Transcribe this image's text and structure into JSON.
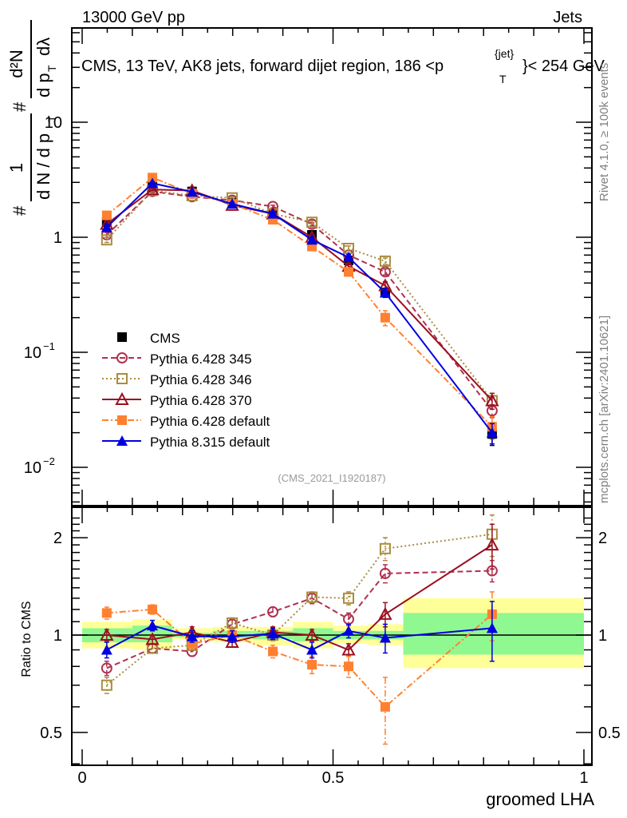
{
  "header": {
    "left": "13000 GeV pp",
    "right": "Jets"
  },
  "side_labels": {
    "rivet": "Rivet 4.1.0, ≥ 100k events",
    "mcplots": "mcplots.cern.ch [arXiv:2401.10621]"
  },
  "chart_data": [
    {
      "type": "line",
      "panel": "main",
      "title": "CMS, 13 TeV, AK8 jets, forward dijet region, 186 <p_T^{jet}< 254 GeV",
      "title_parts": {
        "main": "CMS, 13 TeV, AK8 jets, forward dijet region, 186 <p",
        "sup": "{jet}",
        "sub": "T",
        "tail": "}< 254 GeV"
      },
      "ylabel": "1/dN/dp_T  d²N/dp_T dλ",
      "ylabel_parts": {
        "frac1_num": "1",
        "frac1_den": "d N / d p",
        "frac2_num": "d²N",
        "frac2_den": "d p",
        "frac2_den_tail": "dλ",
        "hash": "#"
      },
      "xlabel": "groomed LHA",
      "yscale": "log",
      "ylim": [
        0.0045,
        45
      ],
      "xlim": [
        -0.02,
        1.015
      ],
      "yticks": [
        {
          "v": 0.01,
          "label": "10",
          "exp": "−2"
        },
        {
          "v": 0.1,
          "label": "10",
          "exp": "−1"
        },
        {
          "v": 1,
          "label": "1",
          "exp": ""
        },
        {
          "v": 10,
          "label": "10",
          "exp": ""
        }
      ],
      "watermark": "(CMS_2021_I1920187)",
      "legend_position": "center-left",
      "x": [
        0.049,
        0.14,
        0.219,
        0.299,
        0.38,
        0.458,
        0.531,
        0.604,
        0.817
      ],
      "series": [
        {
          "name": "CMS",
          "color": "#000000",
          "marker": "filled-square",
          "line": "none",
          "values": [
            1.35,
            2.75,
            2.5,
            2.0,
            1.6,
            1.05,
            0.63,
            0.33,
            0.0195
          ],
          "errors": [
            0.08,
            0.15,
            0.12,
            0.1,
            0.08,
            0.06,
            0.04,
            0.03,
            0.004
          ]
        },
        {
          "name": "Pythia 6.428 345",
          "color": "#b03050",
          "marker": "open-circle",
          "line": "dashed",
          "values": [
            1.05,
            2.5,
            2.25,
            2.1,
            1.85,
            1.3,
            0.7,
            0.5,
            0.031
          ],
          "errors": [
            0.05,
            0.06,
            0.06,
            0.05,
            0.05,
            0.04,
            0.03,
            0.03,
            0.004
          ]
        },
        {
          "name": "Pythia 6.428 346",
          "color": "#a98c3f",
          "marker": "open-square",
          "line": "dotted",
          "values": [
            0.95,
            2.55,
            2.3,
            2.2,
            1.6,
            1.35,
            0.8,
            0.62,
            0.038
          ],
          "errors": [
            0.05,
            0.06,
            0.06,
            0.05,
            0.05,
            0.04,
            0.04,
            0.04,
            0.006
          ]
        },
        {
          "name": "Pythia 6.428 370",
          "color": "#9b1020",
          "marker": "open-triangle",
          "line": "solid",
          "values": [
            1.3,
            2.6,
            2.55,
            1.9,
            1.6,
            1.0,
            0.56,
            0.38,
            0.038
          ],
          "errors": [
            0.05,
            0.06,
            0.07,
            0.05,
            0.05,
            0.04,
            0.03,
            0.03,
            0.006
          ]
        },
        {
          "name": "Pythia 6.428 default",
          "color": "#ff8030",
          "marker": "filled-square",
          "line": "dashdot",
          "values": [
            1.55,
            3.3,
            2.4,
            1.95,
            1.42,
            0.83,
            0.5,
            0.2,
            0.0225
          ],
          "errors": [
            0.06,
            0.08,
            0.06,
            0.05,
            0.05,
            0.04,
            0.04,
            0.03,
            0.005
          ]
        },
        {
          "name": "Pythia 8.315 default",
          "color": "#0000e0",
          "marker": "filled-triangle",
          "line": "solid",
          "values": [
            1.22,
            2.95,
            2.48,
            1.95,
            1.6,
            0.95,
            0.67,
            0.33,
            0.02
          ],
          "errors": [
            0.06,
            0.08,
            0.07,
            0.06,
            0.06,
            0.05,
            0.04,
            0.03,
            0.004
          ]
        }
      ]
    },
    {
      "type": "line",
      "panel": "ratio",
      "ylabel": "Ratio to CMS",
      "xlabel": "groomed LHA",
      "yscale": "log",
      "ylim": [
        0.42,
        2.4
      ],
      "xlim": [
        -0.02,
        1.015
      ],
      "yticks": [
        {
          "v": 0.5,
          "label": "0.5"
        },
        {
          "v": 1,
          "label": "1"
        },
        {
          "v": 2,
          "label": "2"
        }
      ],
      "xticks": [
        {
          "v": 0,
          "label": "0"
        },
        {
          "v": 0.5,
          "label": "0.5"
        },
        {
          "v": 1,
          "label": "1"
        }
      ],
      "bin_edges": [
        0.0,
        0.1,
        0.18,
        0.26,
        0.34,
        0.42,
        0.5,
        0.57,
        0.64,
        1.0
      ],
      "band_inner": [
        [
          0.95,
          1.05
        ],
        [
          0.95,
          1.07
        ],
        [
          0.985,
          1.015
        ],
        [
          0.98,
          1.03
        ],
        [
          0.97,
          1.03
        ],
        [
          0.955,
          1.05
        ],
        [
          0.97,
          1.03
        ],
        [
          0.97,
          1.03
        ],
        [
          0.87,
          1.17
        ]
      ],
      "band_outer": [
        [
          0.91,
          1.1
        ],
        [
          0.9,
          1.12
        ],
        [
          0.97,
          1.05
        ],
        [
          0.95,
          1.06
        ],
        [
          0.93,
          1.06
        ],
        [
          0.91,
          1.1
        ],
        [
          0.94,
          1.07
        ],
        [
          0.93,
          1.08
        ],
        [
          0.79,
          1.3
        ]
      ],
      "band_colors": {
        "inner": "#90f890",
        "outer": "#ffff99"
      },
      "x": [
        0.049,
        0.14,
        0.219,
        0.299,
        0.38,
        0.458,
        0.531,
        0.604,
        0.817
      ],
      "series": [
        {
          "name": "Pythia 6.428 345",
          "color": "#b03050",
          "marker": "open-circle",
          "line": "dashed",
          "values": [
            0.79,
            0.91,
            0.89,
            1.08,
            1.18,
            1.3,
            1.12,
            1.55,
            1.58
          ],
          "errors": [
            0.04,
            0.03,
            0.03,
            0.04,
            0.04,
            0.05,
            0.05,
            0.1,
            0.12
          ]
        },
        {
          "name": "Pythia 6.428 346",
          "color": "#a98c3f",
          "marker": "open-square",
          "line": "dotted",
          "values": [
            0.7,
            0.91,
            0.93,
            1.09,
            1.0,
            1.31,
            1.3,
            1.85,
            2.05
          ],
          "errors": [
            0.04,
            0.03,
            0.03,
            0.04,
            0.04,
            0.05,
            0.06,
            0.15,
            0.3
          ]
        },
        {
          "name": "Pythia 6.428 370",
          "color": "#9b1020",
          "marker": "open-triangle",
          "line": "solid",
          "values": [
            1.0,
            0.97,
            1.02,
            0.95,
            1.02,
            1.0,
            0.9,
            1.16,
            1.9
          ],
          "errors": [
            0.04,
            0.03,
            0.04,
            0.03,
            0.04,
            0.04,
            0.04,
            0.1,
            0.3
          ]
        },
        {
          "name": "Pythia 6.428 default",
          "color": "#ff8030",
          "marker": "filled-square",
          "line": "dashdot",
          "values": [
            1.17,
            1.2,
            0.94,
            1.0,
            0.89,
            0.81,
            0.8,
            0.6,
            1.16
          ],
          "errors": [
            0.05,
            0.04,
            0.03,
            0.04,
            0.04,
            0.05,
            0.06,
            0.14,
            0.2
          ]
        },
        {
          "name": "Pythia 8.315 default",
          "color": "#0000e0",
          "marker": "filled-triangle",
          "line": "solid",
          "values": [
            0.9,
            1.07,
            0.99,
            0.99,
            1.01,
            0.9,
            1.03,
            0.98,
            1.05
          ],
          "errors": [
            0.05,
            0.04,
            0.04,
            0.04,
            0.04,
            0.05,
            0.05,
            0.1,
            0.22
          ]
        }
      ]
    }
  ]
}
